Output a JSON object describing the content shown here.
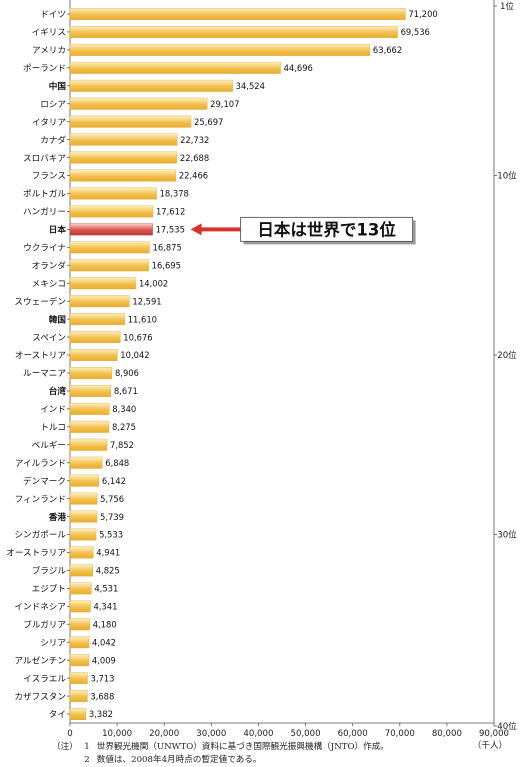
{
  "chart_data": {
    "type": "bar",
    "orientation": "horizontal",
    "categories": [
      "ドイツ",
      "イギリス",
      "アメリカ",
      "ポーランド",
      "中国",
      "ロシア",
      "イタリア",
      "カナダ",
      "スロバキア",
      "フランス",
      "ポルトガル",
      "ハンガリー",
      "日本",
      "ウクライナ",
      "オランダ",
      "メキシコ",
      "スウェーデン",
      "韓国",
      "スペイン",
      "オーストリア",
      "ルーマニア",
      "台湾",
      "インド",
      "トルコ",
      "ベルギー",
      "アイルランド",
      "デンマーク",
      "フィンランド",
      "香港",
      "シンガポール",
      "オーストラリア",
      "ブラジル",
      "エジプト",
      "インドネシア",
      "ブルガリア",
      "シリア",
      "アルゼンチン",
      "イスラエル",
      "カザフスタン",
      "タイ"
    ],
    "values": [
      71200,
      69536,
      63662,
      44696,
      34524,
      29107,
      25697,
      22732,
      22688,
      22466,
      18378,
      17612,
      17535,
      16875,
      16695,
      14002,
      12591,
      11610,
      10676,
      10042,
      8906,
      8671,
      8340,
      8275,
      7852,
      6848,
      6142,
      5756,
      5739,
      5533,
      4941,
      4825,
      4531,
      4341,
      4180,
      4042,
      4009,
      3713,
      3688,
      3382
    ],
    "value_labels": [
      "71,200",
      "69,536",
      "63,662",
      "44,696",
      "34,524",
      "29,107",
      "25,697",
      "22,732",
      "22,688",
      "22,466",
      "18,378",
      "17,612",
      "17,535",
      "16,875",
      "16,695",
      "14,002",
      "12,591",
      "11,610",
      "10,676",
      "10,042",
      "8,906",
      "8,671",
      "8,340",
      "8,275",
      "7,852",
      "6,848",
      "6,142",
      "5,756",
      "5,739",
      "5,533",
      "4,941",
      "4,825",
      "4,531",
      "4,341",
      "4,180",
      "4,042",
      "4,009",
      "3,713",
      "3,688",
      "3,382"
    ],
    "bold_categories": [
      "中国",
      "日本",
      "韓国",
      "台湾",
      "香港"
    ],
    "highlight_index": 12,
    "xlim": [
      0,
      90000
    ],
    "xticks": [
      0,
      10000,
      20000,
      30000,
      40000,
      50000,
      60000,
      70000,
      80000,
      90000
    ],
    "xtick_labels": [
      "0",
      "10,000",
      "20,000",
      "30,000",
      "40,000",
      "50,000",
      "60,000",
      "70,000",
      "80,000",
      "90,000"
    ],
    "xunit": "（千人）",
    "rank_markers": [
      {
        "rank": 1,
        "label": "1位"
      },
      {
        "rank": 10,
        "label": "10位"
      },
      {
        "rank": 20,
        "label": "20位"
      },
      {
        "rank": 30,
        "label": "30位"
      },
      {
        "rank": 40,
        "label": "40位"
      }
    ],
    "callout": {
      "text": "日本は世界で13位",
      "target_index": 12
    },
    "grid": false,
    "colors": {
      "bar": "#f2c14e",
      "bar_light": "#fdf0c4",
      "highlight": "#d9534f",
      "highlight_light": "#f8d0c8",
      "callout": "#d7332b"
    }
  },
  "notes": {
    "label": "（注）",
    "items": [
      {
        "num": "1",
        "text": "世界観光機関（UNWTO）資料に基づき国際観光振興機構（JNTO）作成。"
      },
      {
        "num": "2",
        "text": "数値は、2008年4月時点の暫定値である。"
      }
    ]
  }
}
